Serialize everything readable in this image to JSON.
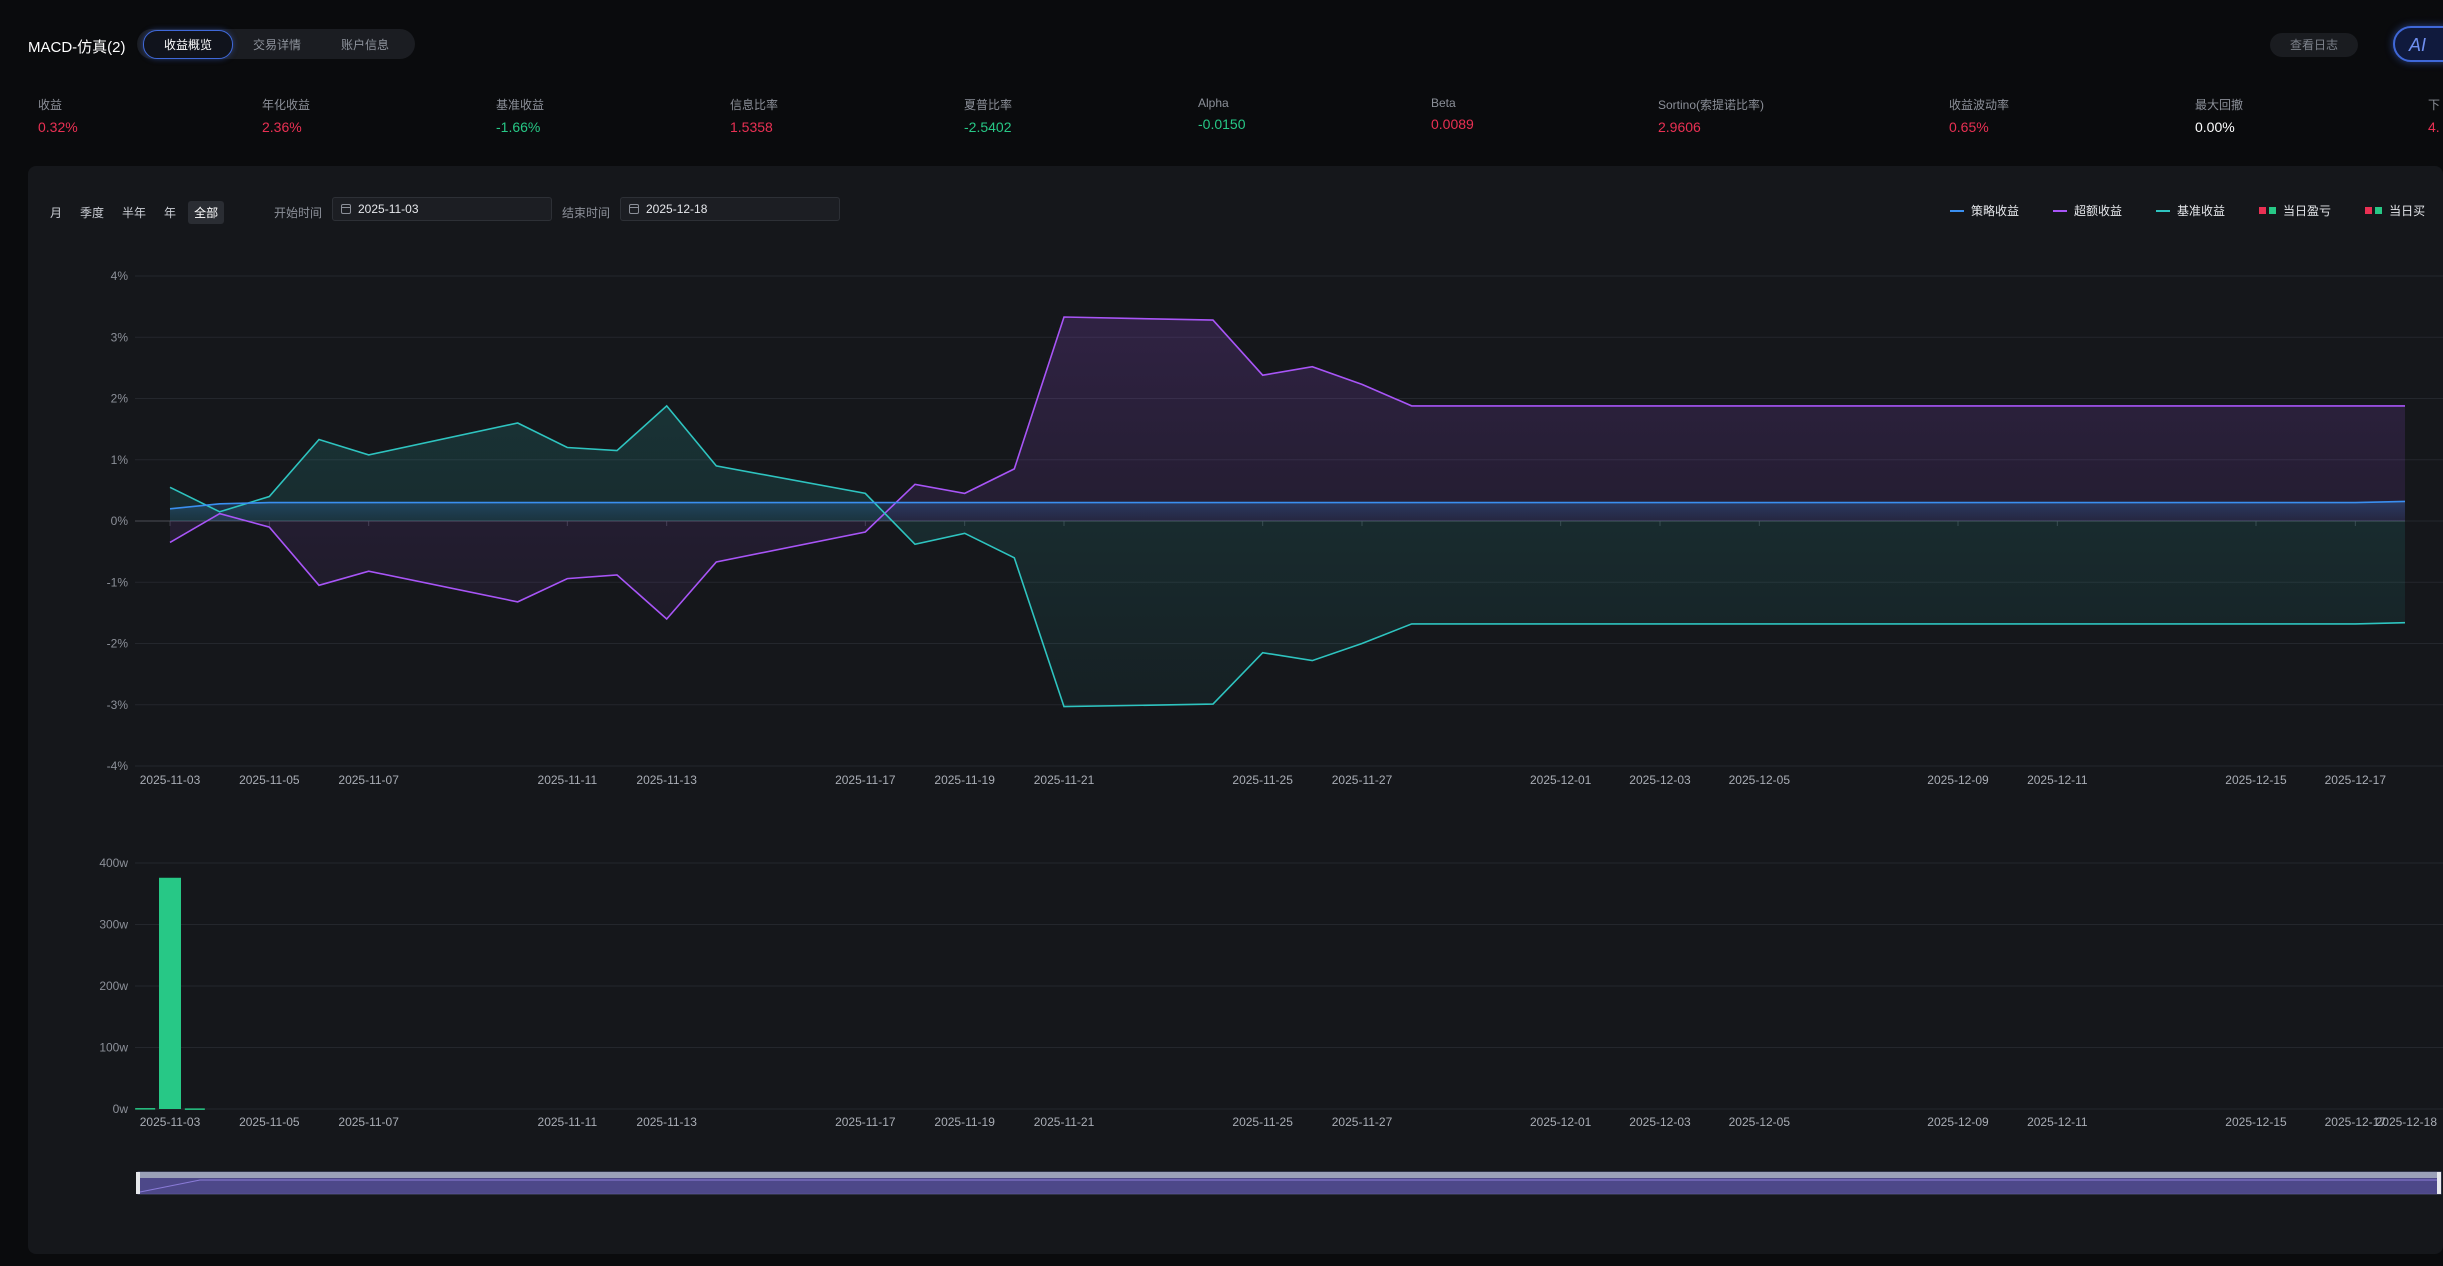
{
  "header": {
    "title": "MACD-仿真(2)",
    "tabs": [
      {
        "label": "收益概览",
        "active": true
      },
      {
        "label": "交易详情",
        "active": false
      },
      {
        "label": "账户信息",
        "active": false
      }
    ],
    "log_button": "查看日志",
    "ai_button": "AI"
  },
  "metrics": [
    {
      "label": "收益",
      "value": "0.32%",
      "color": "red"
    },
    {
      "label": "年化收益",
      "value": "2.36%",
      "color": "red"
    },
    {
      "label": "基准收益",
      "value": "-1.66%",
      "color": "green"
    },
    {
      "label": "信息比率",
      "value": "1.5358",
      "color": "red"
    },
    {
      "label": "夏普比率",
      "value": "-2.5402",
      "color": "green"
    },
    {
      "label": "Alpha",
      "value": "-0.0150",
      "color": "green"
    },
    {
      "label": "Beta",
      "value": "0.0089",
      "color": "red"
    },
    {
      "label": "Sortino(索提诺比率)",
      "value": "2.9606",
      "color": "red"
    },
    {
      "label": "收益波动率",
      "value": "0.65%",
      "color": "red"
    },
    {
      "label": "最大回撤",
      "value": "0.00%",
      "color": "white"
    },
    {
      "label": "下",
      "value": "4.",
      "color": "red"
    }
  ],
  "controls": {
    "ranges": [
      {
        "label": "月",
        "active": false
      },
      {
        "label": "季度",
        "active": false
      },
      {
        "label": "半年",
        "active": false
      },
      {
        "label": "年",
        "active": false
      },
      {
        "label": "全部",
        "active": true
      }
    ],
    "start_label": "开始时间",
    "start_value": "2025-11-03",
    "end_label": "结束时间",
    "end_value": "2025-12-18"
  },
  "legend": [
    {
      "label": "策略收益",
      "type": "line",
      "color": "#3a8ff0"
    },
    {
      "label": "超额收益",
      "type": "line",
      "color": "#a855f7"
    },
    {
      "label": "基准收益",
      "type": "line",
      "color": "#2ec4c0"
    },
    {
      "label": "当日盈亏",
      "type": "squares",
      "colors": [
        "#e93053",
        "#27c886"
      ]
    },
    {
      "label": "当日买",
      "type": "squares",
      "colors": [
        "#e93053",
        "#27c886"
      ]
    }
  ],
  "colors": {
    "strategy": "#3a8ff0",
    "excess": "#a855f7",
    "benchmark": "#2ec4c0",
    "bar_green": "#27c886",
    "profit_red": "#e93053",
    "loss_green": "#27c886"
  },
  "chart_data": [
    {
      "type": "line",
      "title": "",
      "ylim": [
        -4,
        4
      ],
      "y_unit": "%",
      "y_ticks": [
        "4%",
        "3%",
        "2%",
        "1%",
        "0%",
        "-1%",
        "-2%",
        "-3%",
        "-4%"
      ],
      "x_ticks": [
        "2025-11-03",
        "2025-11-05",
        "2025-11-07",
        "2025-11-11",
        "2025-11-13",
        "2025-11-17",
        "2025-11-19",
        "2025-11-21",
        "2025-11-25",
        "2025-11-27",
        "2025-12-01",
        "2025-12-03",
        "2025-12-05",
        "2025-12-09",
        "2025-12-11",
        "2025-12-15",
        "2025-12-17"
      ],
      "x": [
        "2025-11-03",
        "2025-11-04",
        "2025-11-05",
        "2025-11-06",
        "2025-11-07",
        "2025-11-10",
        "2025-11-11",
        "2025-11-12",
        "2025-11-13",
        "2025-11-14",
        "2025-11-17",
        "2025-11-18",
        "2025-11-19",
        "2025-11-20",
        "2025-11-21",
        "2025-11-24",
        "2025-11-25",
        "2025-11-26",
        "2025-11-27",
        "2025-11-28",
        "2025-12-01",
        "2025-12-02",
        "2025-12-03",
        "2025-12-04",
        "2025-12-05",
        "2025-12-08",
        "2025-12-09",
        "2025-12-10",
        "2025-12-11",
        "2025-12-12",
        "2025-12-15",
        "2025-12-16",
        "2025-12-17",
        "2025-12-18"
      ],
      "series": [
        {
          "name": "策略收益",
          "values": [
            0.2,
            0.28,
            0.3,
            0.3,
            0.3,
            0.3,
            0.3,
            0.3,
            0.3,
            0.3,
            0.3,
            0.3,
            0.3,
            0.3,
            0.3,
            0.3,
            0.3,
            0.3,
            0.3,
            0.3,
            0.3,
            0.3,
            0.3,
            0.3,
            0.3,
            0.3,
            0.3,
            0.3,
            0.3,
            0.3,
            0.3,
            0.3,
            0.3,
            0.32
          ]
        },
        {
          "name": "超额收益",
          "values": [
            -0.35,
            0.12,
            -0.1,
            -1.05,
            -0.82,
            -1.32,
            -0.94,
            -0.88,
            -1.6,
            -0.67,
            -0.18,
            0.6,
            0.45,
            0.85,
            3.33,
            3.28,
            2.38,
            2.52,
            2.23,
            1.88,
            1.88,
            1.88,
            1.88,
            1.88,
            1.88,
            1.88,
            1.88,
            1.88,
            1.88,
            1.88,
            1.88,
            1.88,
            1.88,
            1.88
          ]
        },
        {
          "name": "基准收益",
          "values": [
            0.55,
            0.15,
            0.4,
            1.33,
            1.08,
            1.6,
            1.2,
            1.15,
            1.88,
            0.9,
            0.45,
            -0.38,
            -0.2,
            -0.6,
            -3.03,
            -2.99,
            -2.15,
            -2.28,
            -2.0,
            -1.68,
            -1.68,
            -1.68,
            -1.68,
            -1.68,
            -1.68,
            -1.68,
            -1.68,
            -1.68,
            -1.68,
            -1.68,
            -1.68,
            -1.68,
            -1.68,
            -1.66
          ]
        }
      ]
    },
    {
      "type": "bar",
      "title": "",
      "ylim": [
        0,
        400
      ],
      "y_unit": "w",
      "y_ticks": [
        "400w",
        "300w",
        "200w",
        "100w",
        "0w"
      ],
      "x_ticks": [
        "2025-11-03",
        "2025-11-05",
        "2025-11-07",
        "2025-11-11",
        "2025-11-13",
        "2025-11-17",
        "2025-11-19",
        "2025-11-21",
        "2025-11-25",
        "2025-11-27",
        "2025-12-01",
        "2025-12-03",
        "2025-12-05",
        "2025-12-09",
        "2025-12-11",
        "2025-12-15",
        "2025-12-17",
        "2025-12-18"
      ],
      "bars": [
        {
          "x": "2025-11-03",
          "offset": -1,
          "value": 1.5
        },
        {
          "x": "2025-11-03",
          "offset": 0,
          "value": 376
        },
        {
          "x": "2025-11-03",
          "offset": 1,
          "value": 1
        }
      ]
    }
  ]
}
